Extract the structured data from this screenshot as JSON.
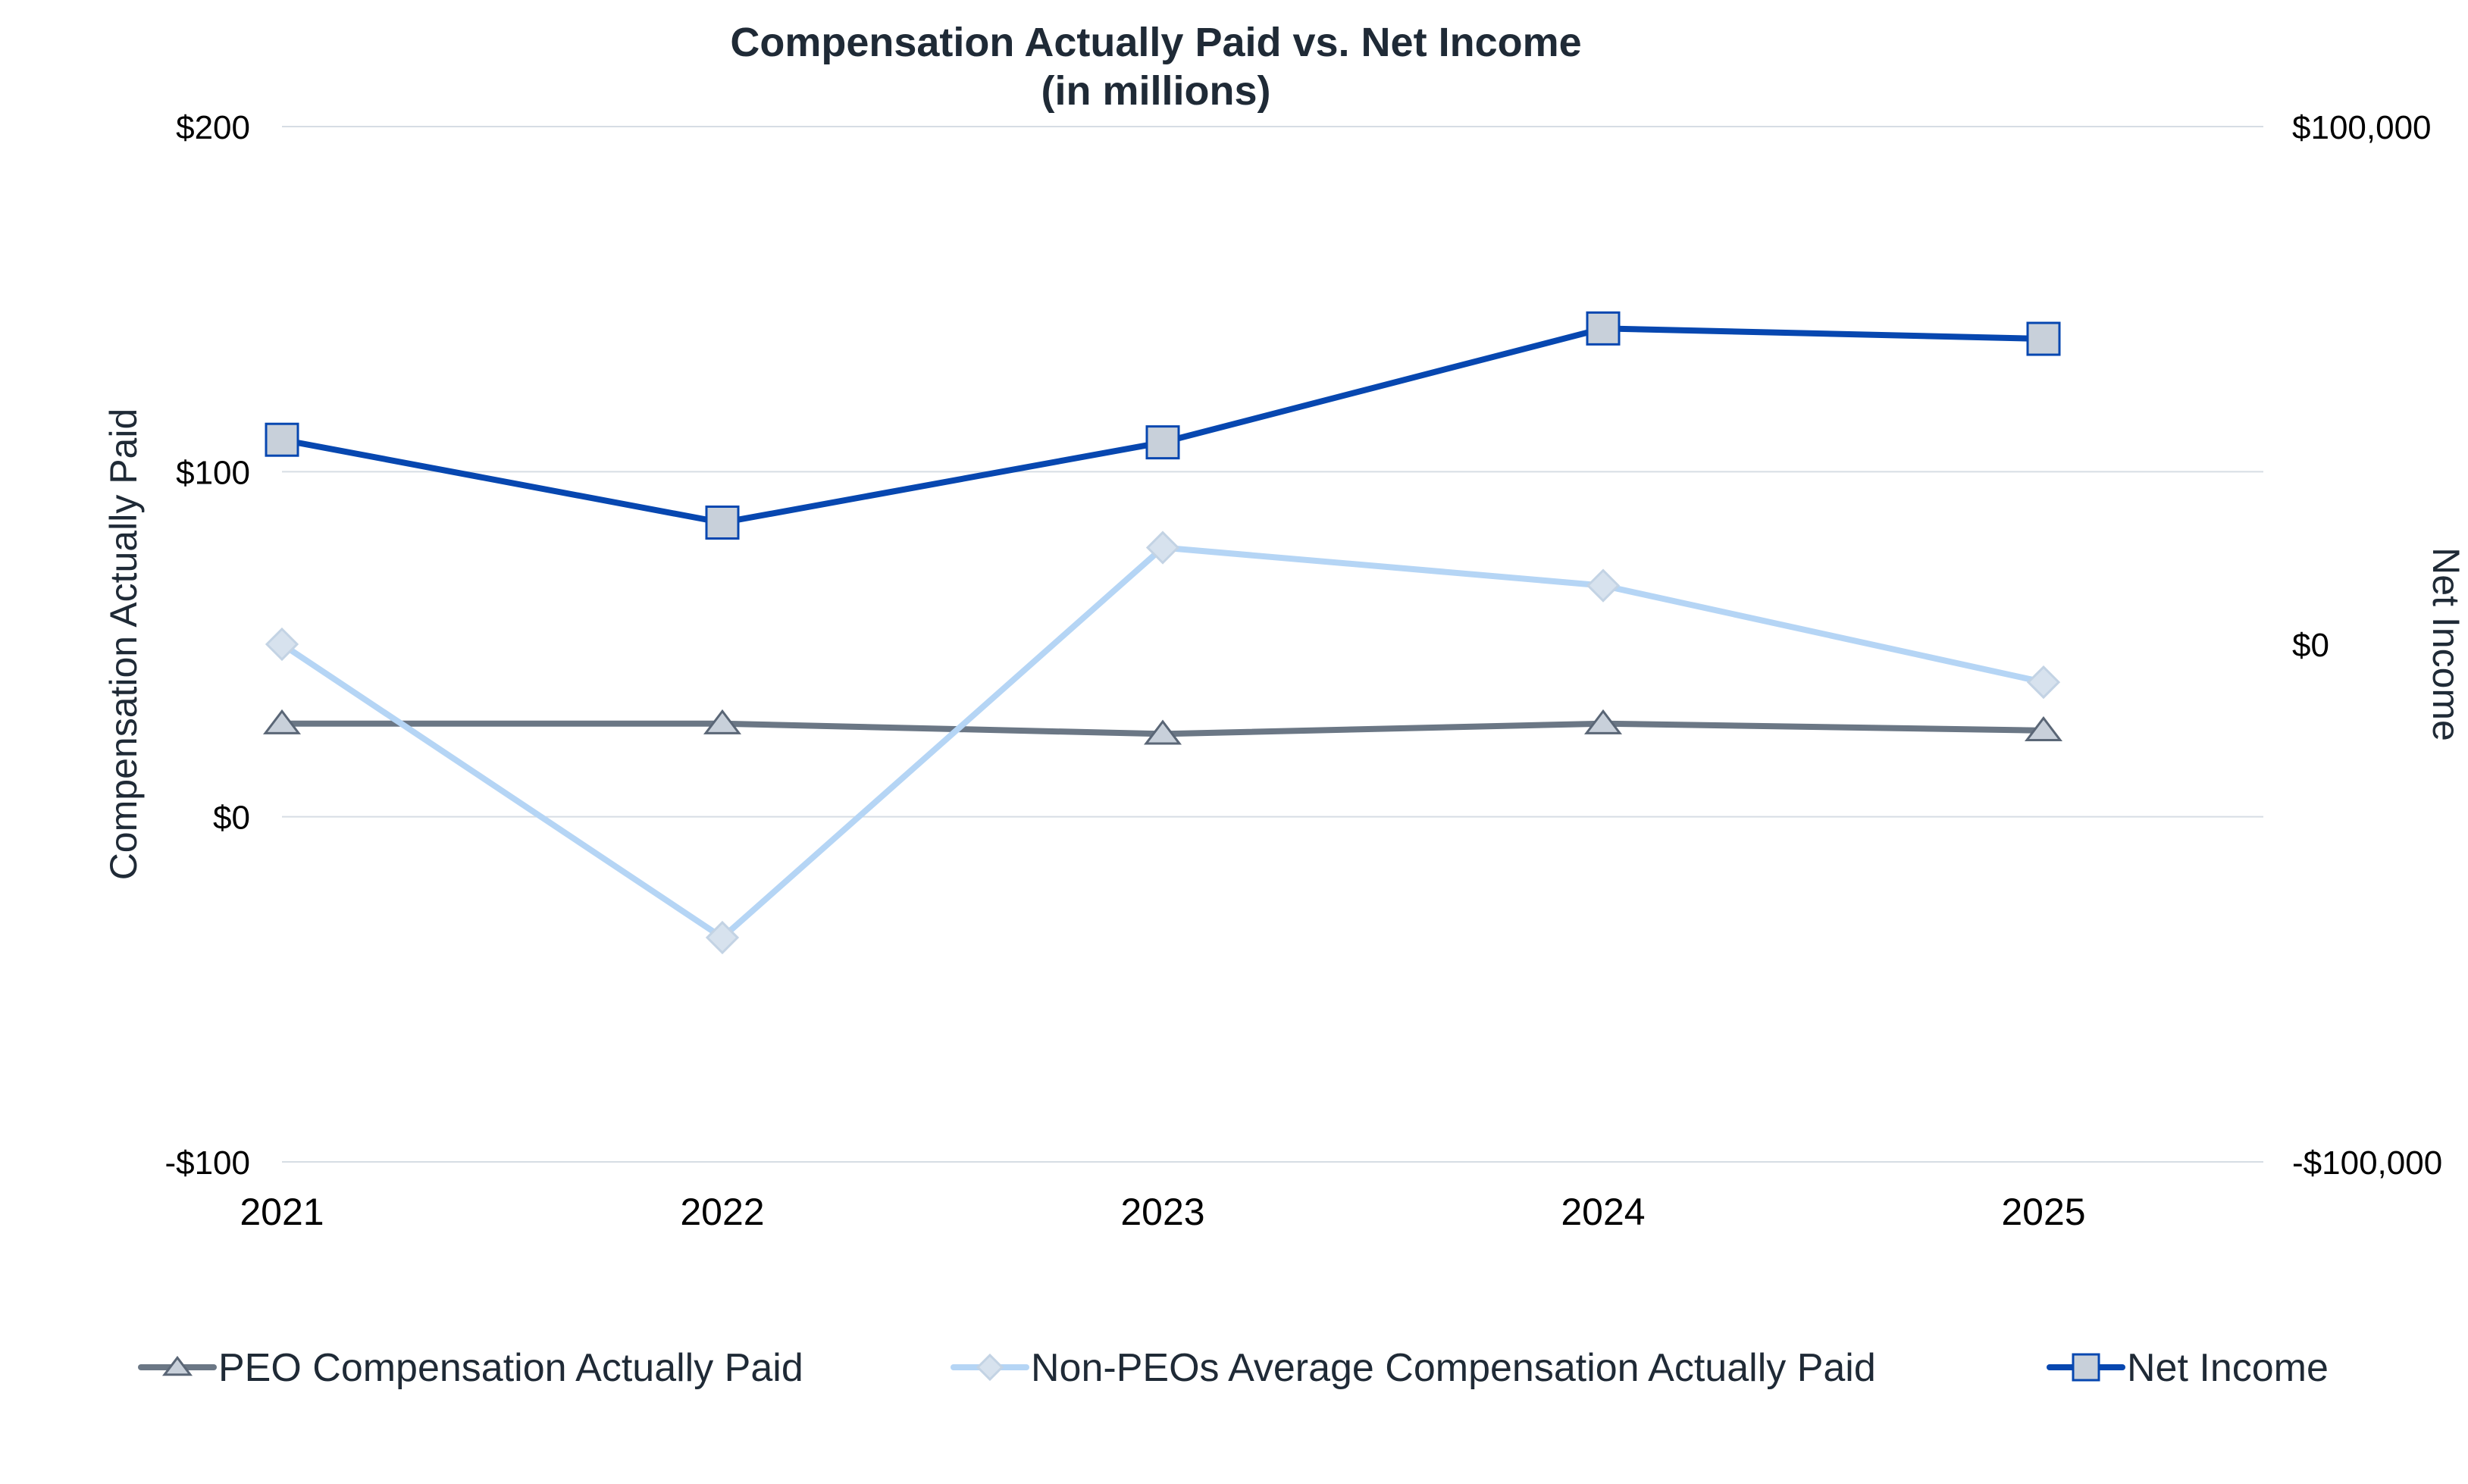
{
  "chart_data": {
    "type": "line",
    "title": "Compensation Actually Paid vs. Net Income",
    "subtitle": "(in millions)",
    "x": [
      "2021",
      "2022",
      "2023",
      "2024",
      "2025"
    ],
    "ylabel": "Compensation Actually Paid",
    "ylabel_right": "Net Income",
    "ylim": [
      -100,
      200
    ],
    "ylim_right": [
      -100000,
      100000
    ],
    "yticks": [
      -100,
      0,
      100,
      200
    ],
    "yticks_labels": [
      "-$100",
      "$0",
      "$100",
      "$200"
    ],
    "yticks_right": [
      -100000,
      0,
      100000
    ],
    "yticks_right_labels": [
      "-$100,000",
      "$0",
      "$100,000"
    ],
    "grid": true,
    "legend_position": "bottom",
    "series": [
      {
        "name": "PEO Compensation Actually Paid",
        "axis": "left",
        "values": [
          27,
          27,
          24,
          27,
          25
        ],
        "color": "#6b7785",
        "marker": "triangle",
        "marker_fill": "#c8d0da",
        "marker_stroke": "#5a6676"
      },
      {
        "name": "Non-PEOs Average Compensation Actually Paid",
        "axis": "left",
        "values": [
          50,
          -35,
          78,
          67,
          39
        ],
        "color": "#b5d5f5",
        "marker": "diamond",
        "marker_fill": "#d7e2ee",
        "marker_stroke": "#c3d3e4"
      },
      {
        "name": "Net Income",
        "axis": "right",
        "values": [
          39500,
          23500,
          39000,
          61000,
          59000
        ],
        "color": "#0747b0",
        "marker": "square",
        "marker_fill": "#c8d0da",
        "marker_stroke": "#0747b0"
      }
    ]
  }
}
